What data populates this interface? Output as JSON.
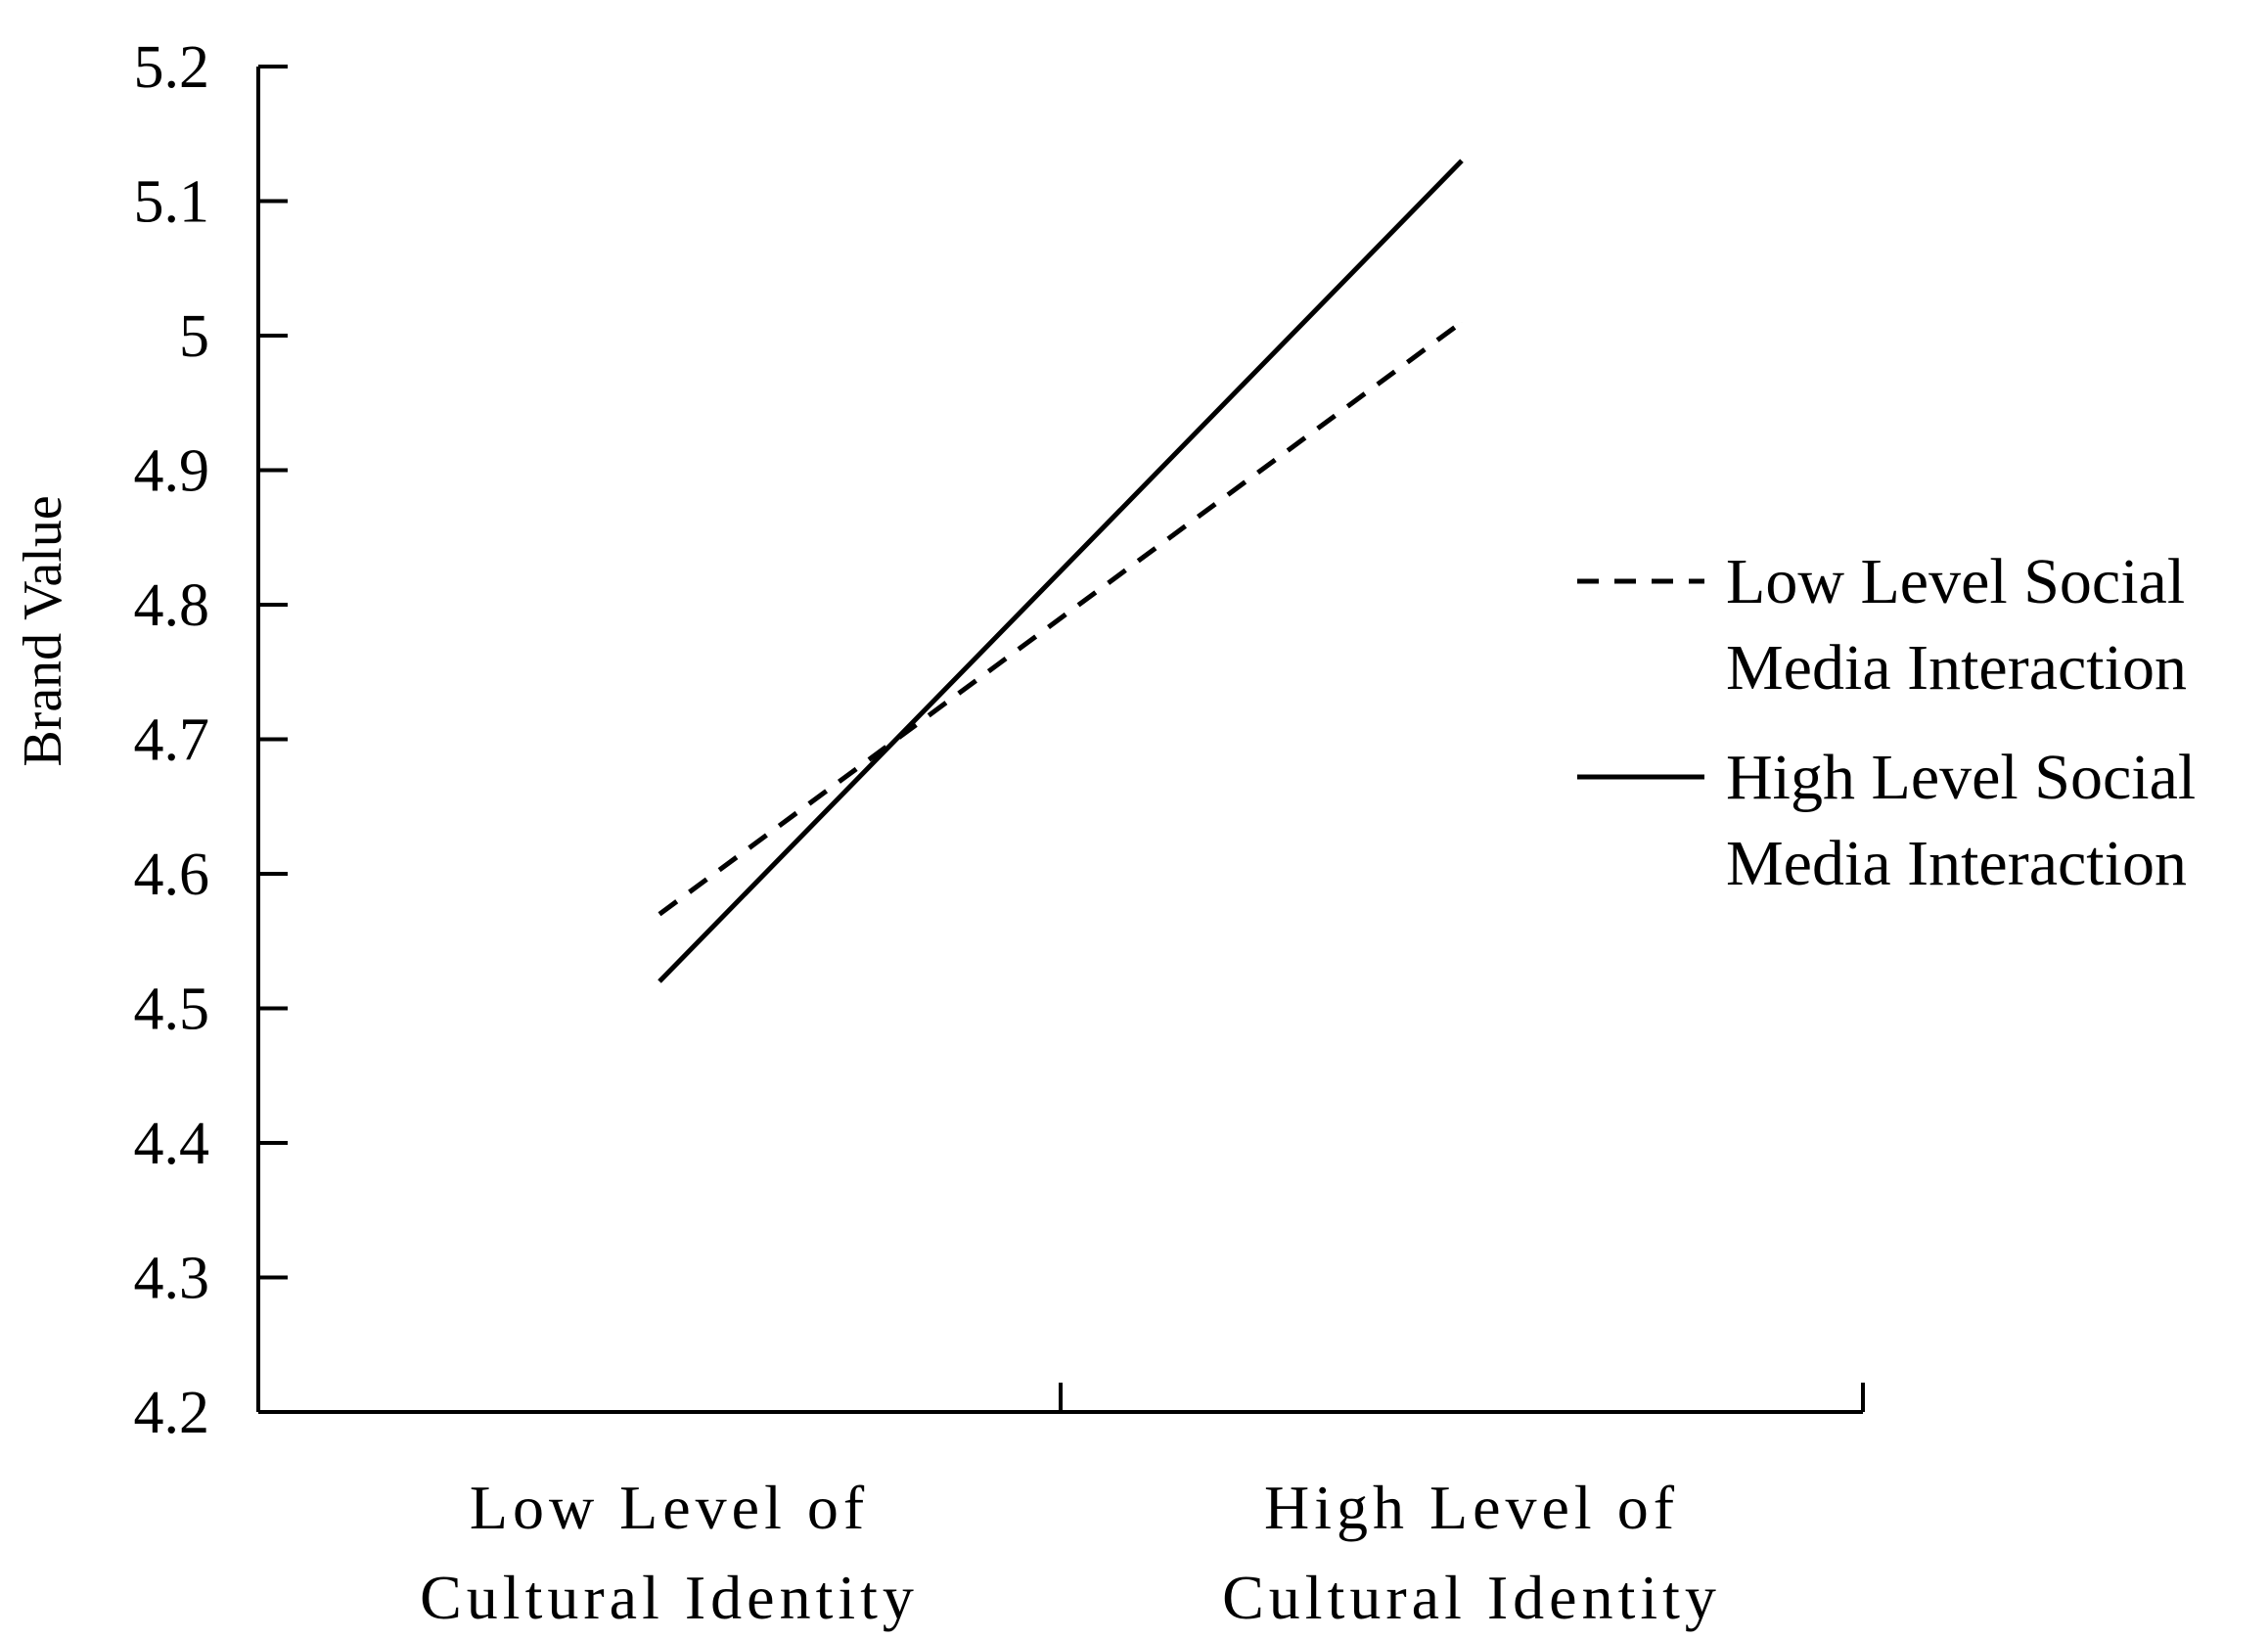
{
  "chart_data": {
    "type": "line",
    "title": "",
    "ylabel": "Brand Value",
    "xlabel": "",
    "ylim": [
      4.2,
      5.2
    ],
    "yticks": [
      "4.2",
      "4.3",
      "4.4",
      "4.5",
      "4.6",
      "4.7",
      "4.8",
      "4.9",
      "5",
      "5.1",
      "5.2"
    ],
    "categories": [
      [
        "Low Level of",
        "Cultural Identity"
      ],
      [
        "High Level of",
        "Cultural Identity"
      ]
    ],
    "series": [
      {
        "name": [
          "Low Level Social",
          "Media Interaction"
        ],
        "style": "dashed",
        "values": [
          4.57,
          5.01
        ]
      },
      {
        "name": [
          "High Level Social",
          "Media Interaction"
        ],
        "style": "solid",
        "values": [
          4.52,
          5.13
        ]
      }
    ],
    "grid": false,
    "legend": "right",
    "line_color": "#000000"
  }
}
